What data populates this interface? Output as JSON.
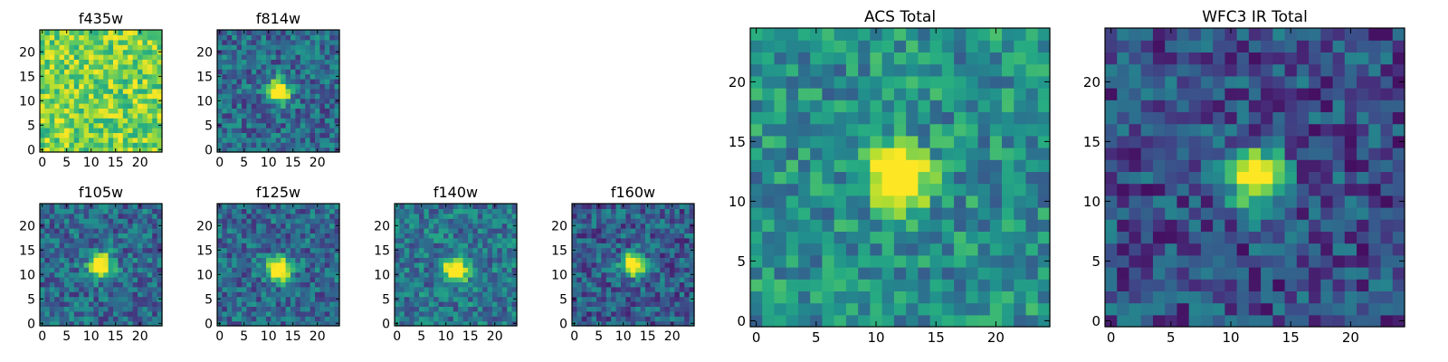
{
  "chart_data": [
    {
      "type": "heatmap",
      "title": "f435w",
      "xticks": [
        0,
        5,
        10,
        15,
        20
      ],
      "yticks": [
        0,
        5,
        10,
        15,
        20
      ],
      "xlim": [
        -0.5,
        24.5
      ],
      "ylim": [
        -0.5,
        24.5
      ],
      "grid_size": [
        25,
        25
      ],
      "source_center": [
        12,
        12
      ],
      "source_peak": 0.0,
      "background_level": 0.8,
      "colormap": "viridis"
    },
    {
      "type": "heatmap",
      "title": "f814w",
      "xticks": [
        0,
        5,
        10,
        15,
        20
      ],
      "yticks": [
        0,
        5,
        10,
        15,
        20
      ],
      "xlim": [
        -0.5,
        24.5
      ],
      "ylim": [
        -0.5,
        24.5
      ],
      "grid_size": [
        25,
        25
      ],
      "source_center": [
        12,
        12
      ],
      "source_peak": 1.0,
      "background_level": 0.35,
      "colormap": "viridis"
    },
    {
      "type": "heatmap",
      "title": "f105w",
      "xticks": [
        0,
        5,
        10,
        15,
        20
      ],
      "yticks": [
        0,
        5,
        10,
        15,
        20
      ],
      "xlim": [
        -0.5,
        24.5
      ],
      "ylim": [
        -0.5,
        24.5
      ],
      "grid_size": [
        25,
        25
      ],
      "source_center": [
        12,
        12
      ],
      "source_peak": 1.0,
      "background_level": 0.35,
      "colormap": "viridis"
    },
    {
      "type": "heatmap",
      "title": "f125w",
      "xticks": [
        0,
        5,
        10,
        15,
        20
      ],
      "yticks": [
        0,
        5,
        10,
        15,
        20
      ],
      "xlim": [
        -0.5,
        24.5
      ],
      "ylim": [
        -0.5,
        24.5
      ],
      "grid_size": [
        25,
        25
      ],
      "source_center": [
        12,
        11
      ],
      "source_peak": 1.0,
      "background_level": 0.35,
      "colormap": "viridis"
    },
    {
      "type": "heatmap",
      "title": "f140w",
      "xticks": [
        0,
        5,
        10,
        15,
        20
      ],
      "yticks": [
        0,
        5,
        10,
        15,
        20
      ],
      "xlim": [
        -0.5,
        24.5
      ],
      "ylim": [
        -0.5,
        24.5
      ],
      "grid_size": [
        25,
        25
      ],
      "source_center": [
        12,
        11
      ],
      "source_peak": 1.0,
      "background_level": 0.4,
      "colormap": "viridis"
    },
    {
      "type": "heatmap",
      "title": "f160w",
      "xticks": [
        0,
        5,
        10,
        15,
        20
      ],
      "yticks": [
        0,
        5,
        10,
        15,
        20
      ],
      "xlim": [
        -0.5,
        24.5
      ],
      "ylim": [
        -0.5,
        24.5
      ],
      "grid_size": [
        25,
        25
      ],
      "source_center": [
        12,
        12
      ],
      "source_peak": 1.0,
      "background_level": 0.3,
      "colormap": "viridis"
    },
    {
      "type": "heatmap",
      "title": "ACS Total",
      "xticks": [
        0,
        5,
        10,
        15,
        20
      ],
      "yticks": [
        0,
        5,
        10,
        15,
        20
      ],
      "xlim": [
        -0.5,
        24.5
      ],
      "ylim": [
        -0.5,
        24.5
      ],
      "grid_size": [
        25,
        25
      ],
      "source_center": [
        12,
        12
      ],
      "source_peak": 1.0,
      "background_level": 0.5,
      "colormap": "viridis"
    },
    {
      "type": "heatmap",
      "title": "WFC3 IR Total",
      "xticks": [
        0,
        5,
        10,
        15,
        20
      ],
      "yticks": [
        0,
        5,
        10,
        15,
        20
      ],
      "xlim": [
        -0.5,
        24.5
      ],
      "ylim": [
        -0.5,
        24.5
      ],
      "grid_size": [
        25,
        25
      ],
      "source_center": [
        12,
        12
      ],
      "source_peak": 1.0,
      "background_level": 0.25,
      "colormap": "viridis"
    }
  ]
}
